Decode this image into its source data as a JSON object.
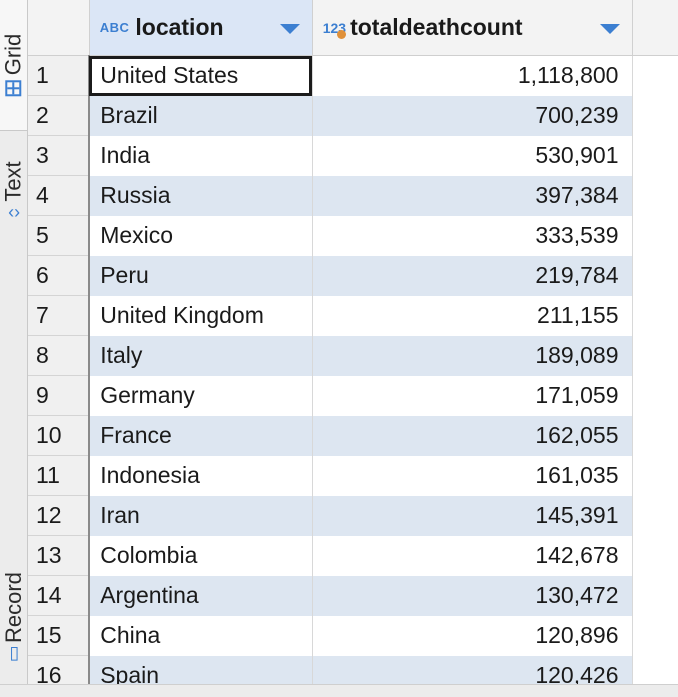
{
  "sidebar": {
    "tabs": [
      {
        "label": "Grid",
        "icon": "grid-icon",
        "active": true
      },
      {
        "label": "Text",
        "icon": "code-icon",
        "active": false
      },
      {
        "label": "Record",
        "icon": "record-icon",
        "active": false
      }
    ]
  },
  "grid": {
    "columns": [
      {
        "type_badge": "ABC",
        "name": "location"
      },
      {
        "type_badge": "123",
        "name": "totaldeathcount"
      }
    ],
    "rows": [
      {
        "n": "1",
        "location": "United States",
        "total": "1,118,800"
      },
      {
        "n": "2",
        "location": "Brazil",
        "total": "700,239"
      },
      {
        "n": "3",
        "location": "India",
        "total": "530,901"
      },
      {
        "n": "4",
        "location": "Russia",
        "total": "397,384"
      },
      {
        "n": "5",
        "location": "Mexico",
        "total": "333,539"
      },
      {
        "n": "6",
        "location": "Peru",
        "total": "219,784"
      },
      {
        "n": "7",
        "location": "United Kingdom",
        "total": "211,155"
      },
      {
        "n": "8",
        "location": "Italy",
        "total": "189,089"
      },
      {
        "n": "9",
        "location": "Germany",
        "total": "171,059"
      },
      {
        "n": "10",
        "location": "France",
        "total": "162,055"
      },
      {
        "n": "11",
        "location": "Indonesia",
        "total": "161,035"
      },
      {
        "n": "12",
        "location": "Iran",
        "total": "145,391"
      },
      {
        "n": "13",
        "location": "Colombia",
        "total": "142,678"
      },
      {
        "n": "14",
        "location": "Argentina",
        "total": "130,472"
      },
      {
        "n": "15",
        "location": "China",
        "total": "120,896"
      },
      {
        "n": "16",
        "location": "Spain",
        "total": "120,426"
      }
    ]
  }
}
